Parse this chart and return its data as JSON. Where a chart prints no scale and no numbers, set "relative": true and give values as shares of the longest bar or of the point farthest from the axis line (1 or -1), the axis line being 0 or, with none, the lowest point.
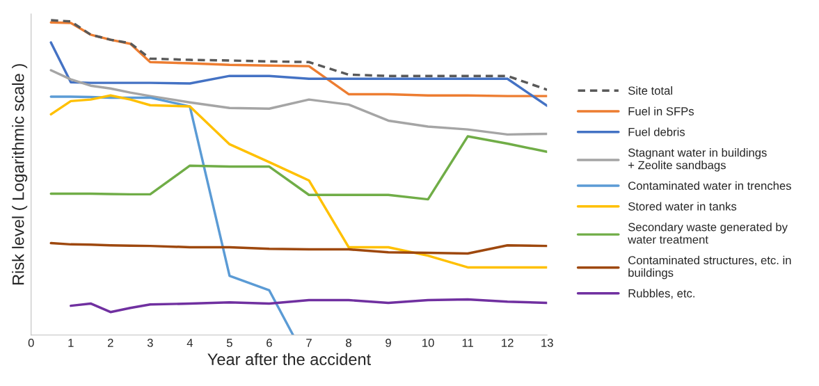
{
  "chart_data": {
    "type": "line",
    "relative": true,
    "xlabel": "Year after the accident",
    "ylabel": "Risk level ( Logarithmic scale )",
    "x": [
      0.5,
      1,
      1.5,
      2,
      2.5,
      3,
      4,
      5,
      6,
      7,
      8,
      9,
      10,
      11,
      12,
      13
    ],
    "xlim": [
      0,
      13
    ],
    "xticks": [
      0,
      1,
      2,
      3,
      4,
      5,
      6,
      7,
      8,
      9,
      10,
      11,
      12,
      13
    ],
    "grid": false,
    "legend": "right",
    "marker": "none",
    "series": [
      {
        "name": "Site total",
        "color": "#595959",
        "line_style": "dashed",
        "values": [
          1.0,
          0.996,
          0.954,
          0.938,
          0.927,
          0.878,
          0.874,
          0.872,
          0.869,
          0.867,
          0.827,
          0.823,
          0.823,
          0.823,
          0.823,
          0.779
        ]
      },
      {
        "name": "Fuel in SFPs",
        "color": "#ed7d31",
        "values": [
          0.993,
          0.991,
          0.954,
          0.938,
          0.925,
          0.867,
          0.863,
          0.858,
          0.856,
          0.854,
          0.765,
          0.765,
          0.761,
          0.761,
          0.759,
          0.759
        ]
      },
      {
        "name": "Fuel debris",
        "color": "#4472c4",
        "values": [
          0.929,
          0.803,
          0.801,
          0.801,
          0.801,
          0.801,
          0.799,
          0.823,
          0.823,
          0.814,
          0.814,
          0.814,
          0.814,
          0.814,
          0.814,
          0.728
        ]
      },
      {
        "name": "Stagnant water in buildings\n+ Zeolite sandbags",
        "color": "#a5a5a5",
        "values": [
          0.841,
          0.812,
          0.792,
          0.783,
          0.77,
          0.759,
          0.739,
          0.721,
          0.719,
          0.748,
          0.732,
          0.681,
          0.662,
          0.653,
          0.637,
          0.639
        ]
      },
      {
        "name": "Contaminated water in trenches",
        "color": "#5b9bd5",
        "x": [
          0.5,
          1,
          1.5,
          2,
          2.5,
          3,
          4,
          5,
          6,
          6.6
        ],
        "values": [
          0.757,
          0.757,
          0.756,
          0.754,
          0.754,
          0.754,
          0.726,
          0.188,
          0.142,
          0
        ]
      },
      {
        "name": "Stored water in tanks",
        "color": "#ffc000",
        "values": [
          0.701,
          0.743,
          0.748,
          0.761,
          0.748,
          0.73,
          0.726,
          0.606,
          0.549,
          0.491,
          0.279,
          0.279,
          0.252,
          0.215,
          0.215,
          0.215
        ]
      },
      {
        "name": "Secondary waste generated by\nwater treatment",
        "color": "#70ad47",
        "values": [
          0.449,
          0.449,
          0.449,
          0.448,
          0.447,
          0.447,
          0.538,
          0.535,
          0.535,
          0.445,
          0.445,
          0.445,
          0.431,
          0.631,
          0.608,
          0.582
        ]
      },
      {
        "name": "Contaminated structures, etc. in\nbuildings",
        "color": "#9e480e",
        "values": [
          0.292,
          0.288,
          0.287,
          0.285,
          0.284,
          0.283,
          0.279,
          0.279,
          0.274,
          0.272,
          0.272,
          0.263,
          0.261,
          0.259,
          0.285,
          0.283
        ]
      },
      {
        "name": "Rubbles, etc.",
        "color": "#7030a0",
        "x": [
          1,
          1.5,
          2,
          2.5,
          3,
          4,
          5,
          6,
          7,
          8,
          9,
          10,
          11,
          12,
          13
        ],
        "values": [
          0.093,
          0.1,
          0.073,
          0.086,
          0.097,
          0.1,
          0.104,
          0.1,
          0.111,
          0.111,
          0.102,
          0.111,
          0.113,
          0.106,
          0.102
        ]
      }
    ]
  }
}
